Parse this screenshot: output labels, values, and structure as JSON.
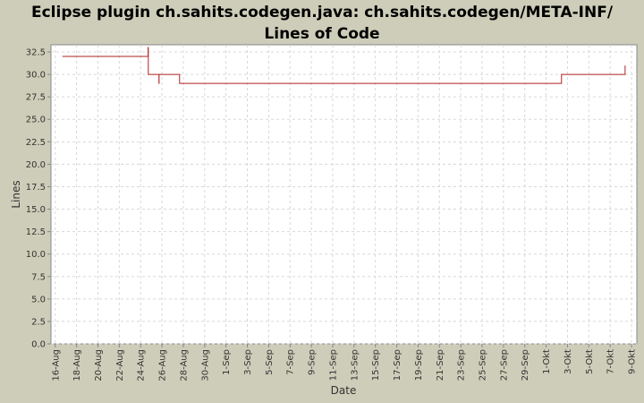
{
  "chart_data": {
    "type": "step-line",
    "title": "Eclipse plugin ch.sahits.codegen.java: ch.sahits.codegen/META-INF/ Lines of Code",
    "x_label": "Date",
    "y_label": "Lines",
    "xlim": [
      -0.4,
      54.5
    ],
    "xticks": [
      {
        "value": 0,
        "label": "16-Aug"
      },
      {
        "value": 2,
        "label": "18-Aug"
      },
      {
        "value": 4,
        "label": "20-Aug"
      },
      {
        "value": 6,
        "label": "22-Aug"
      },
      {
        "value": 8,
        "label": "24-Aug"
      },
      {
        "value": 10,
        "label": "26-Aug"
      },
      {
        "value": 12,
        "label": "28-Aug"
      },
      {
        "value": 14,
        "label": "30-Aug"
      },
      {
        "value": 16,
        "label": "1-Sep"
      },
      {
        "value": 18,
        "label": "3-Sep"
      },
      {
        "value": 20,
        "label": "5-Sep"
      },
      {
        "value": 22,
        "label": "7-Sep"
      },
      {
        "value": 24,
        "label": "9-Sep"
      },
      {
        "value": 26,
        "label": "11-Sep"
      },
      {
        "value": 28,
        "label": "13-Sep"
      },
      {
        "value": 30,
        "label": "15-Sep"
      },
      {
        "value": 32,
        "label": "17-Sep"
      },
      {
        "value": 34,
        "label": "19-Sep"
      },
      {
        "value": 36,
        "label": "21-Sep"
      },
      {
        "value": 38,
        "label": "23-Sep"
      },
      {
        "value": 40,
        "label": "25-Sep"
      },
      {
        "value": 42,
        "label": "27-Sep"
      },
      {
        "value": 44,
        "label": "29-Sep"
      },
      {
        "value": 46,
        "label": "1-Okt"
      },
      {
        "value": 48,
        "label": "3-Okt"
      },
      {
        "value": 50,
        "label": "5-Okt"
      },
      {
        "value": 52,
        "label": "7-Okt"
      },
      {
        "value": 54,
        "label": "9-Okt"
      }
    ],
    "ylim": [
      0,
      33.3
    ],
    "yticks": [
      {
        "value": 0,
        "label": "0.0"
      },
      2.5,
      {
        "value": 5,
        "label": "5.0"
      },
      7.5,
      {
        "value": 10,
        "label": "10.0"
      },
      12.5,
      {
        "value": 15,
        "label": "15.0"
      },
      17.5,
      {
        "value": 20,
        "label": "20.0"
      },
      22.5,
      {
        "value": 25,
        "label": "25.0"
      },
      27.5,
      {
        "value": 30,
        "label": "30.0"
      },
      32.5
    ],
    "grid": true,
    "series": [
      {
        "color": "#b22222",
        "x": [
          0.67,
          8.7,
          8.72,
          9.72,
          9.73,
          11.65,
          47.44,
          53.4
        ],
        "values": [
          32,
          33,
          30,
          29,
          30,
          29,
          30,
          31
        ]
      }
    ]
  }
}
